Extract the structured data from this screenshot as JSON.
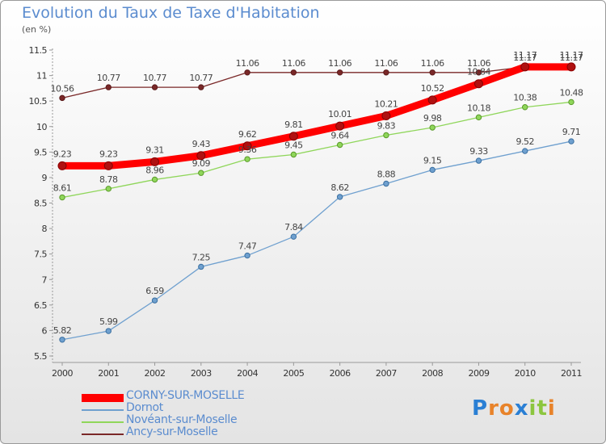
{
  "title": "Evolution du Taux de Taxe d'Habitation",
  "unit": "(en %)",
  "logo": {
    "letters": [
      "P",
      "r",
      "o",
      "x",
      "i",
      "t",
      "i"
    ],
    "colors": [
      "#2a7fd4",
      "#e8832a",
      "#e8832a",
      "#2a7fd4",
      "#8cc63f",
      "#8cc63f",
      "#e8832a"
    ]
  },
  "chart_data": {
    "type": "line",
    "title": "Evolution du Taux de Taxe d'Habitation",
    "ylabel": "(en %)",
    "xlabel": "",
    "x": [
      "2000",
      "2001",
      "2002",
      "2003",
      "2004",
      "2005",
      "2006",
      "2007",
      "2008",
      "2009",
      "2010",
      "2011"
    ],
    "ylim": [
      5.5,
      11.5
    ],
    "yticks": [
      "5.5",
      "6",
      "6.5",
      "7",
      "7.5",
      "8",
      "8.5",
      "9",
      "9.5",
      "10",
      "10.5",
      "11",
      "11.5"
    ],
    "grid": false,
    "legend_position": "bottom-left",
    "series": [
      {
        "name": "CORNY-SUR-MOSELLE",
        "color": "#ff0000",
        "values": [
          9.23,
          9.23,
          9.31,
          9.43,
          9.62,
          9.81,
          10.01,
          10.21,
          10.52,
          10.84,
          11.17,
          11.17
        ],
        "labels": [
          "9.23",
          "9.23",
          "9.31",
          "9.43",
          "9.62",
          "9.81",
          "10.01",
          "10.21",
          "10.52",
          "10.84",
          "11.17",
          "11.17"
        ]
      },
      {
        "name": "Dornot",
        "color": "#6fa0cf",
        "values": [
          5.82,
          5.99,
          6.59,
          7.25,
          7.47,
          7.84,
          8.62,
          8.88,
          9.15,
          9.33,
          9.52,
          9.71
        ],
        "labels": [
          "5.82",
          "5.99",
          "6.59",
          "7.25",
          "7.47",
          "7.84",
          "8.62",
          "8.88",
          "9.15",
          "9.33",
          "9.52",
          "9.71"
        ]
      },
      {
        "name": "Novéant-sur-Moselle",
        "color": "#8fd65a",
        "values": [
          8.61,
          8.78,
          8.96,
          9.09,
          9.36,
          9.45,
          9.64,
          9.83,
          9.98,
          10.18,
          10.38,
          10.48
        ],
        "labels": [
          "8.61",
          "8.78",
          "8.96",
          "9.09",
          "9.36",
          "9.45",
          "9.64",
          "9.83",
          "9.98",
          "10.18",
          "10.38",
          "10.48"
        ]
      },
      {
        "name": "Ancy-sur-Moselle",
        "color": "#7a2828",
        "values": [
          10.56,
          10.77,
          10.77,
          10.77,
          11.06,
          11.06,
          11.06,
          11.06,
          11.06,
          11.06,
          11.17,
          11.17
        ],
        "labels": [
          "10.56",
          "10.77",
          "10.77",
          "10.77",
          "11.06",
          "11.06",
          "11.06",
          "11.06",
          "11.06",
          "11.06",
          "11.17",
          "11.17"
        ]
      }
    ]
  }
}
